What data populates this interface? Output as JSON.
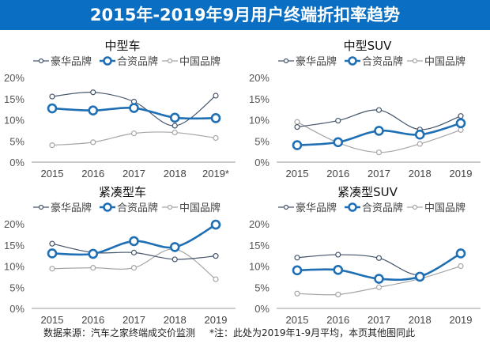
{
  "title": "2015年-2019年9月用户终端折扣率趋势",
  "footer": {
    "source": "数据来源：汽车之家终端成交价监测",
    "note": "*注：此处为2019年1-9月平均，本页其他图同此"
  },
  "colors": {
    "header": "#0a6fc2",
    "豪华品牌": "#44546a",
    "合资品牌": "#1f6fb5",
    "中国品牌": "#a6a6a6"
  },
  "chart_data": [
    {
      "type": "line",
      "title": "中型车",
      "categories": [
        "2015",
        "2016",
        "2017",
        "2018",
        "2019*"
      ],
      "yticks": [
        "0%",
        "5%",
        "10%",
        "15%",
        "20%"
      ],
      "ylim": [
        0,
        20
      ],
      "legend": "top",
      "series": [
        {
          "name": "豪华品牌",
          "values": [
            15.5,
            16.5,
            14.3,
            8.6,
            15.7
          ]
        },
        {
          "name": "合资品牌",
          "values": [
            12.7,
            12.2,
            12.8,
            10.5,
            10.4
          ]
        },
        {
          "name": "中国品牌",
          "values": [
            4.0,
            4.7,
            6.8,
            7.0,
            5.7
          ]
        }
      ]
    },
    {
      "type": "line",
      "title": "中型SUV",
      "categories": [
        "2015",
        "2016",
        "2017",
        "2018",
        "2019"
      ],
      "yticks": [
        "0%",
        "5%",
        "10%",
        "15%",
        "20%"
      ],
      "ylim": [
        0,
        20
      ],
      "legend": "top",
      "series": [
        {
          "name": "豪华品牌",
          "values": [
            8.3,
            9.8,
            12.3,
            7.7,
            10.9
          ]
        },
        {
          "name": "合资品牌",
          "values": [
            4.0,
            4.7,
            7.4,
            6.5,
            9.2
          ]
        },
        {
          "name": "中国品牌",
          "values": [
            9.5,
            4.6,
            2.3,
            4.3,
            7.6
          ]
        }
      ]
    },
    {
      "type": "line",
      "title": "紧凑型车",
      "categories": [
        "2015",
        "2016",
        "2017",
        "2018",
        "2019"
      ],
      "yticks": [
        "0%",
        "5%",
        "10%",
        "15%",
        "20%"
      ],
      "ylim": [
        0,
        20
      ],
      "legend": "top",
      "series": [
        {
          "name": "豪华品牌",
          "values": [
            15.3,
            13.2,
            13.2,
            11.6,
            12.4
          ]
        },
        {
          "name": "合资品牌",
          "values": [
            13.0,
            12.9,
            15.9,
            14.5,
            19.8
          ]
        },
        {
          "name": "中国品牌",
          "values": [
            9.4,
            9.6,
            9.6,
            14.0,
            6.9
          ]
        }
      ]
    },
    {
      "type": "line",
      "title": "紧凑型SUV",
      "categories": [
        "2015",
        "2016",
        "2017",
        "2018",
        "2019"
      ],
      "yticks": [
        "0%",
        "5%",
        "10%",
        "15%",
        "20%"
      ],
      "ylim": [
        0,
        20
      ],
      "legend": "top",
      "series": [
        {
          "name": "豪华品牌",
          "values": [
            12.0,
            12.7,
            11.9,
            7.9,
            13.0
          ]
        },
        {
          "name": "合资品牌",
          "values": [
            9.0,
            9.1,
            7.0,
            7.5,
            13.0
          ]
        },
        {
          "name": "中国品牌",
          "values": [
            3.5,
            3.3,
            5.0,
            7.0,
            10.0
          ]
        }
      ]
    }
  ]
}
